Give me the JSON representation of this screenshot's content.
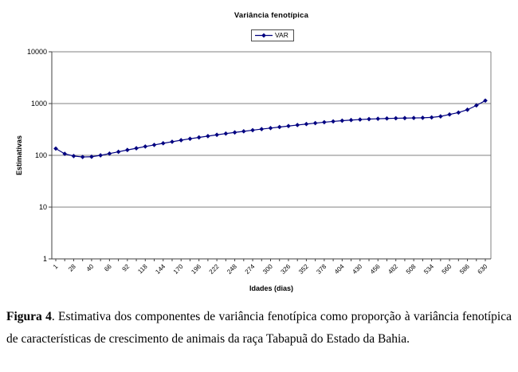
{
  "figure": {
    "caption_label": "Figura 4",
    "caption_text": ". Estimativa dos componentes de variância fenotípica como proporção à variância fenotípica de características de crescimento de animais da raça Tabapuã do Estado da Bahia."
  },
  "chart_data": {
    "type": "line",
    "title": "Variância fenotípica",
    "xlabel": "Idades (dias)",
    "ylabel": "Estimativas",
    "legend": {
      "position": "top",
      "entries": [
        "VAR"
      ]
    },
    "y_axis": {
      "scale": "log",
      "min": 1,
      "max": 10000,
      "ticks": [
        1,
        10,
        100,
        1000,
        10000
      ]
    },
    "x_tick_labels": [
      "1",
      "28",
      "40",
      "66",
      "92",
      "118",
      "144",
      "170",
      "196",
      "222",
      "248",
      "274",
      "300",
      "326",
      "352",
      "378",
      "404",
      "430",
      "456",
      "482",
      "508",
      "534",
      "560",
      "586",
      "630"
    ],
    "points_per_label": 2,
    "series": [
      {
        "name": "VAR",
        "values": [
          135,
          107,
          97,
          93,
          94,
          100,
          108,
          117,
          127,
          137,
          148,
          159,
          171,
          183,
          196,
          209,
          222,
          235,
          249,
          263,
          277,
          291,
          306,
          321,
          336,
          352,
          368,
          385,
          402,
          419,
          436,
          452,
          467,
          480,
          491,
          501,
          509,
          515,
          520,
          524,
          527,
          531,
          540,
          565,
          615,
          670,
          760,
          920,
          1140
        ]
      }
    ],
    "colors": {
      "line": "#000080",
      "grid": "#808080",
      "axis": "#404040",
      "text": "#000000"
    }
  }
}
